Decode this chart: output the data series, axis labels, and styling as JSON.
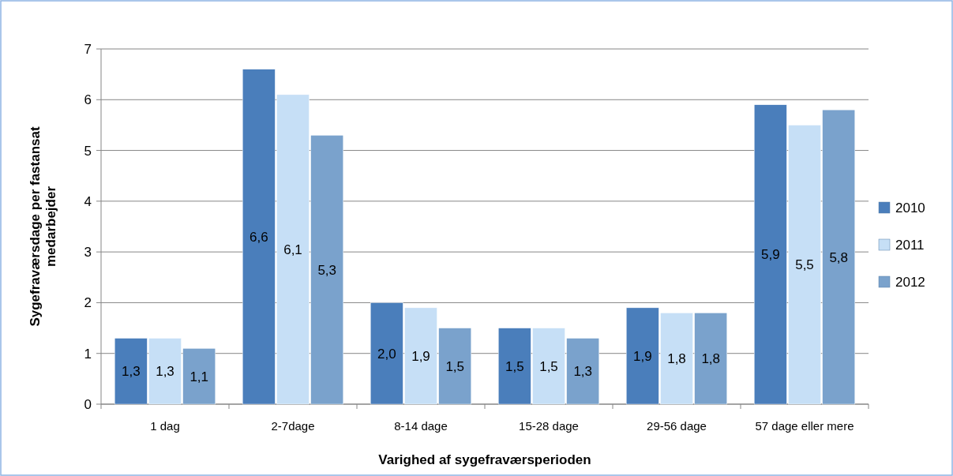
{
  "chart_data": {
    "type": "bar",
    "xlabel": "Varighed af sygefraværsperioden",
    "ylabel": "Sygefraværsdage per fastansat medarbejder",
    "categories": [
      "1 dag",
      "2-7dage",
      "8-14 dage",
      "15-28 dage",
      "29-56 dage",
      "57 dage eller mere"
    ],
    "series": [
      {
        "name": "2010",
        "color": "#4a7ebb",
        "values": [
          1.3,
          6.6,
          2.0,
          1.5,
          1.9,
          5.9
        ],
        "value_labels": [
          "1,3",
          "6,6",
          "2,0",
          "1,5",
          "1,9",
          "5,9"
        ]
      },
      {
        "name": "2011",
        "color": "#c6dff6",
        "values": [
          1.3,
          6.1,
          1.9,
          1.5,
          1.8,
          5.5
        ],
        "value_labels": [
          "1,3",
          "6,1",
          "1,9",
          "1,5",
          "1,8",
          "5,5"
        ]
      },
      {
        "name": "2012",
        "color": "#7aa2cc",
        "values": [
          1.1,
          5.3,
          1.5,
          1.3,
          1.8,
          5.8
        ],
        "value_labels": [
          "1,1",
          "5,3",
          "1,5",
          "1,3",
          "1,8",
          "5,8"
        ]
      }
    ],
    "ylim": [
      0,
      7
    ],
    "yticks": [
      0,
      1,
      2,
      3,
      4,
      5,
      6,
      7
    ],
    "grid": "y",
    "legend": "right"
  }
}
